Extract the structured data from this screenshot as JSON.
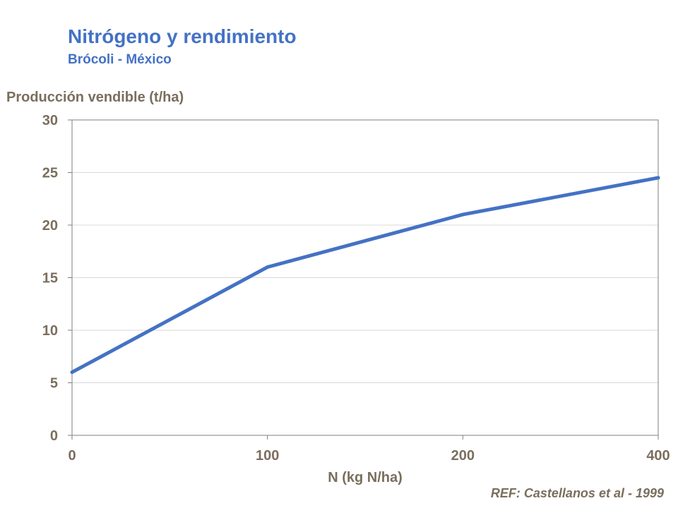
{
  "header": {
    "title": "Nitrógeno y rendimiento",
    "subtitle": "Brócoli - México"
  },
  "reference": "REF: Castellanos et al - 1999",
  "chart_data": {
    "type": "line",
    "title": "Nitrógeno y rendimiento",
    "subtitle": "Brócoli - México",
    "xlabel": "N (kg N/ha)",
    "ylabel": "Producción vendible (t/ha)",
    "categories": [
      "0",
      "100",
      "200",
      "400"
    ],
    "series": [
      {
        "values": [
          6,
          16,
          21,
          24.5
        ],
        "color": "#4472c4"
      }
    ],
    "ylim": [
      0,
      30
    ],
    "yticks": [
      0,
      5,
      10,
      15,
      20,
      25,
      30
    ],
    "grid": true,
    "legend": "none"
  },
  "colors": {
    "title": "#4472c4",
    "series": "#4472c4",
    "axis_text": "#7a6e5d",
    "grid": "#d9d9d9"
  }
}
